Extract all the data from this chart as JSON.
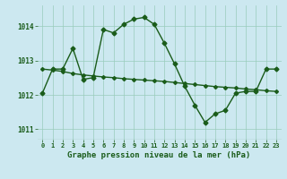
{
  "background_color": "#cce8f0",
  "grid_color": "#99ccbb",
  "line_color": "#1a5c1a",
  "hours": [
    0,
    1,
    2,
    3,
    4,
    5,
    6,
    7,
    8,
    9,
    10,
    11,
    12,
    13,
    14,
    15,
    16,
    17,
    18,
    19,
    20,
    21,
    22,
    23
  ],
  "line1": [
    1012.05,
    1012.75,
    1012.75,
    1013.35,
    1012.45,
    1012.5,
    1013.9,
    1013.8,
    1014.05,
    1014.2,
    1014.25,
    1014.05,
    1013.5,
    1012.9,
    1012.25,
    1011.7,
    1011.2,
    1011.45,
    1011.55,
    1012.05,
    1012.1,
    1012.1,
    1012.75,
    1012.75
  ],
  "line2": [
    1012.75,
    1012.72,
    1012.68,
    1012.62,
    1012.58,
    1012.55,
    1012.52,
    1012.5,
    1012.47,
    1012.45,
    1012.43,
    1012.41,
    1012.39,
    1012.36,
    1012.33,
    1012.3,
    1012.27,
    1012.24,
    1012.22,
    1012.2,
    1012.17,
    1012.15,
    1012.12,
    1012.1
  ],
  "ylim": [
    1010.7,
    1014.6
  ],
  "yticks": [
    1011,
    1012,
    1013,
    1014
  ],
  "ytick_labels": [
    "1011",
    "1012",
    "1013",
    "1014"
  ],
  "xticks": [
    0,
    1,
    2,
    3,
    4,
    5,
    6,
    7,
    8,
    9,
    10,
    11,
    12,
    13,
    14,
    15,
    16,
    17,
    18,
    19,
    20,
    21,
    22,
    23
  ],
  "xlabel": "Graphe pression niveau de la mer (hPa)",
  "marker": "D",
  "markersize": 2.5,
  "linewidth": 1.0,
  "ylabel_fontsize": 5.5,
  "xlabel_fontsize": 6.5,
  "xtick_fontsize": 5.0,
  "ytick_fontsize": 5.5
}
